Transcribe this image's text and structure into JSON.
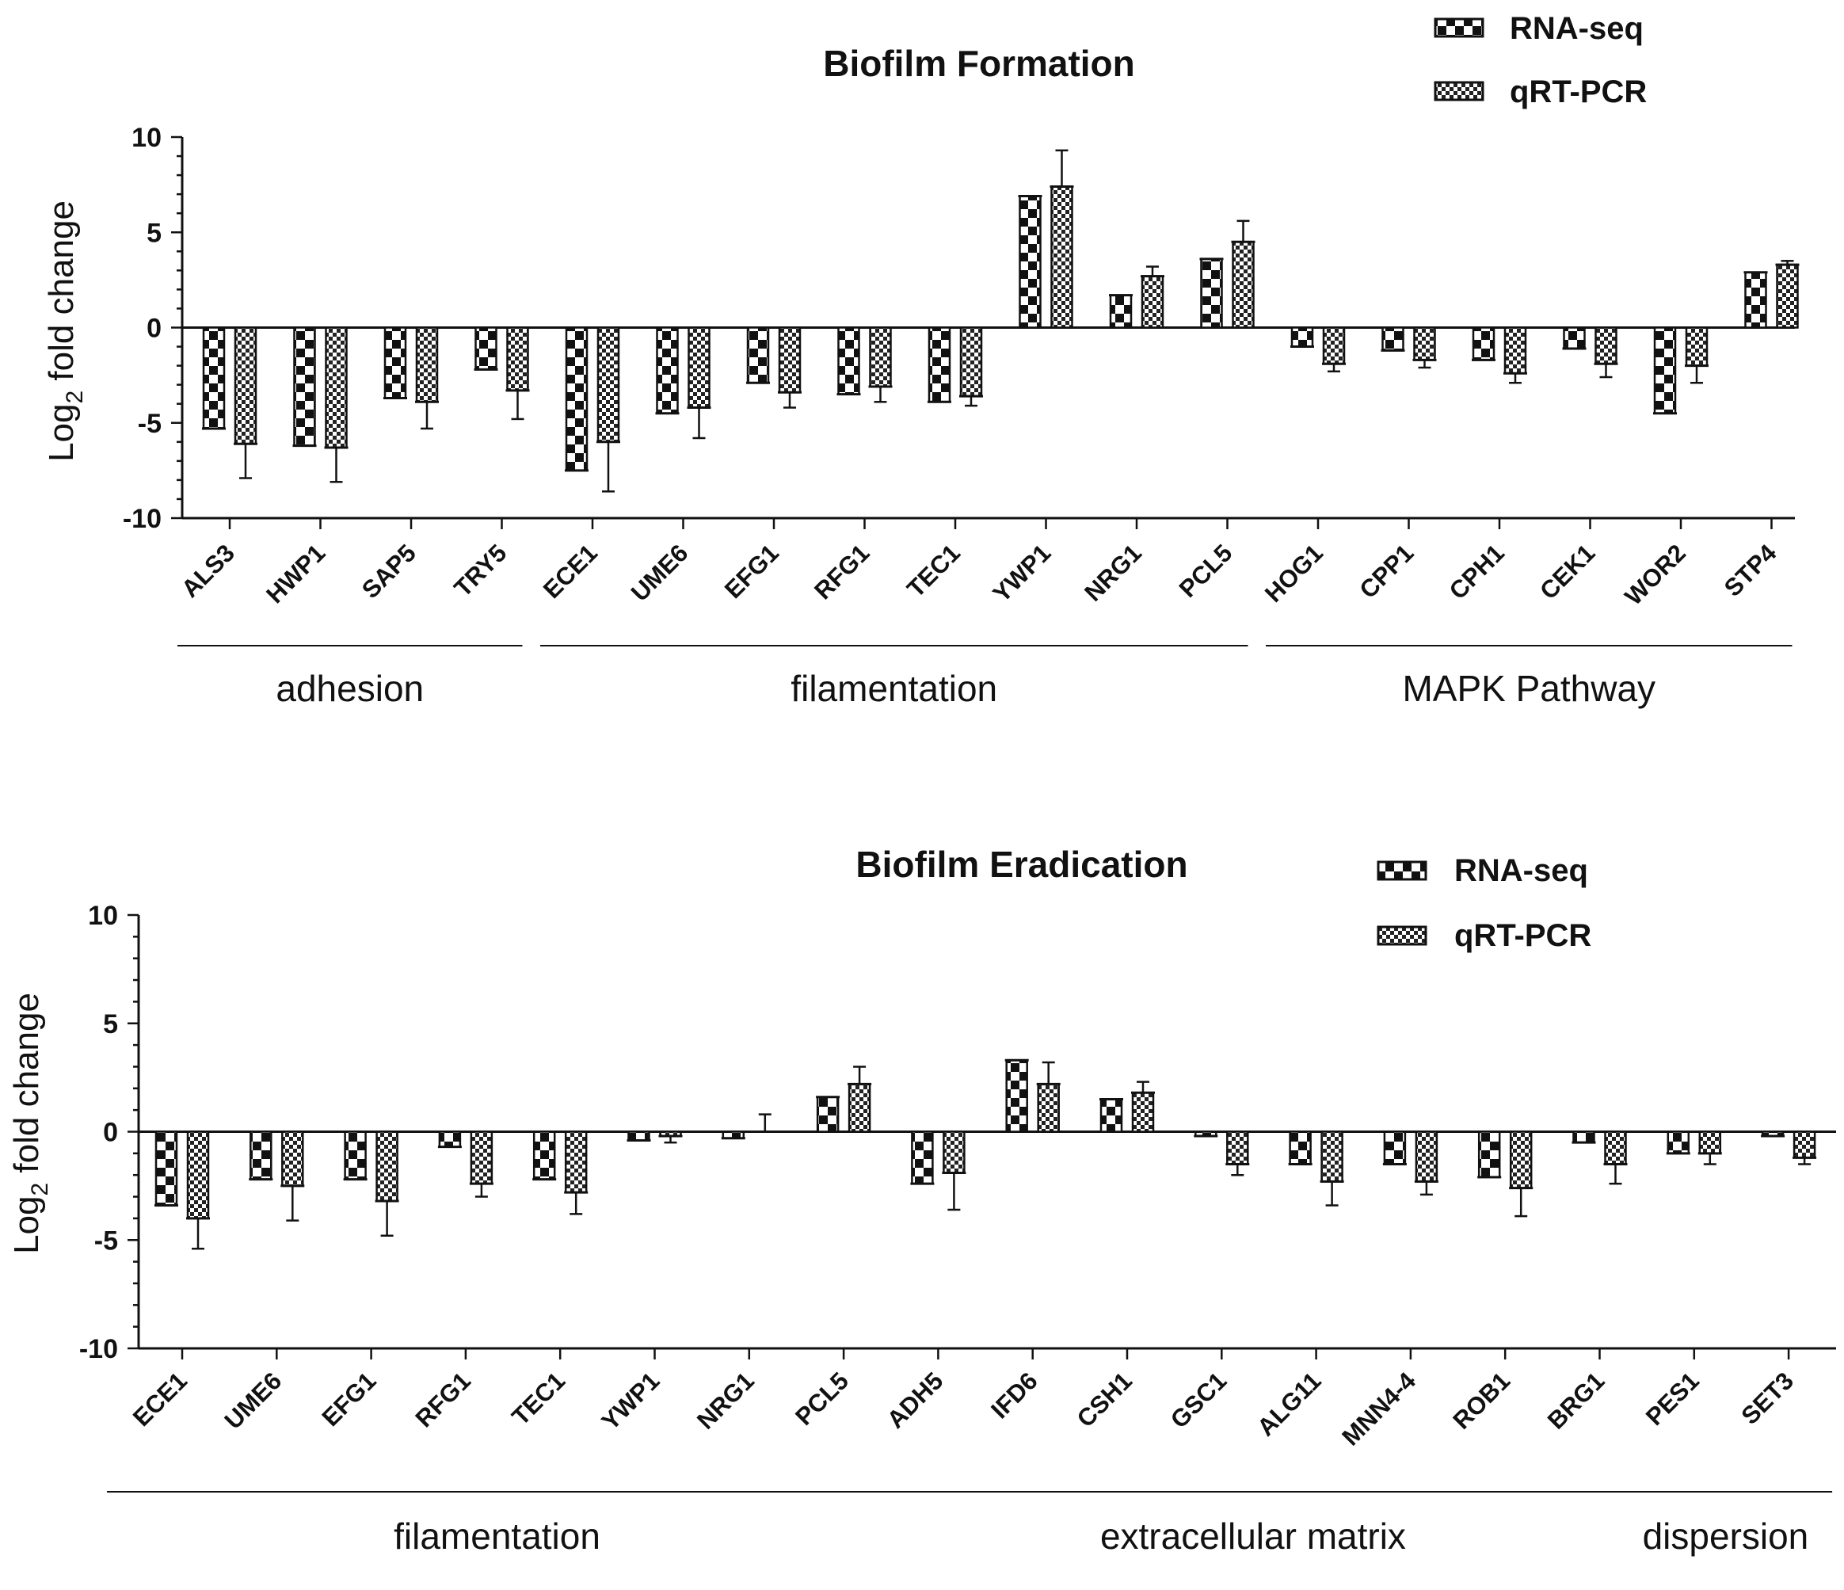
{
  "chart_data": [
    {
      "type": "bar",
      "title": "Biofilm Formation",
      "ylabel": "Log",
      "ylabel_sub": "2",
      "ylabel_rest": " fold change",
      "ylim": [
        -10,
        10
      ],
      "yticks": [
        10,
        5,
        0,
        -5,
        -10
      ],
      "ytick_labels": [
        "10",
        "5",
        "0",
        "-5",
        "-10"
      ],
      "legend": [
        "RNA-seq",
        "qRT-PCR"
      ],
      "legend_position": "top-right",
      "categories": [
        "ALS3",
        "HWP1",
        "SAP5",
        "TRY5",
        "ECE1",
        "UME6",
        "EFG1",
        "RFG1",
        "TEC1",
        "YWP1",
        "NRG1",
        "PCL5",
        "HOG1",
        "CPP1",
        "CPH1",
        "CEK1",
        "WOR2",
        "STP4"
      ],
      "series": [
        {
          "name": "RNA-seq",
          "values": [
            -5.3,
            -6.2,
            -3.7,
            -2.2,
            -7.5,
            -4.5,
            -2.9,
            -3.5,
            -3.9,
            6.9,
            1.7,
            3.6,
            -1.0,
            -1.2,
            -1.7,
            -1.1,
            -4.5,
            2.9
          ],
          "errors": [
            0,
            0,
            0,
            0,
            0,
            0,
            0,
            0,
            0,
            0,
            0,
            0,
            0,
            0,
            0,
            0,
            0,
            0
          ]
        },
        {
          "name": "qRT-PCR",
          "values": [
            -6.1,
            -6.3,
            -3.9,
            -3.3,
            -6.0,
            -4.2,
            -3.4,
            -3.1,
            -3.6,
            7.4,
            2.7,
            4.5,
            -1.9,
            -1.7,
            -2.4,
            -1.9,
            -2.0,
            3.3
          ],
          "errors": [
            1.8,
            1.8,
            1.4,
            1.5,
            2.6,
            1.6,
            0.8,
            0.8,
            0.5,
            1.9,
            0.5,
            1.1,
            0.4,
            0.4,
            0.5,
            0.7,
            0.9,
            0.2
          ]
        }
      ],
      "groups": [
        {
          "label": "adhesion",
          "from": 0,
          "to": 3
        },
        {
          "label": "filamentation",
          "from": 4,
          "to": 11
        },
        {
          "label": "MAPK Pathway",
          "from": 12,
          "to": 17
        }
      ]
    },
    {
      "type": "bar",
      "title": "Biofilm Eradication",
      "ylabel": "Log",
      "ylabel_sub": "2",
      "ylabel_rest": " fold change",
      "ylim": [
        -10,
        10
      ],
      "yticks": [
        10,
        5,
        0,
        -5,
        -10
      ],
      "ytick_labels": [
        "10",
        "5",
        "0",
        "-5",
        "-10"
      ],
      "legend": [
        "RNA-seq",
        "qRT-PCR"
      ],
      "legend_position": "top-right",
      "categories": [
        "ECE1",
        "UME6",
        "EFG1",
        "RFG1",
        "TEC1",
        "YWP1",
        "NRG1",
        "PCL5",
        "ADH5",
        "IFD6",
        "CSH1",
        "GSC1",
        "ALG11",
        "MNN4-4",
        "ROB1",
        "BRG1",
        "PES1",
        "SET3"
      ],
      "series": [
        {
          "name": "RNA-seq",
          "values": [
            -3.4,
            -2.2,
            -2.2,
            -0.7,
            -2.2,
            -0.4,
            -0.3,
            1.6,
            -2.4,
            3.3,
            1.5,
            -0.2,
            -1.5,
            -1.5,
            -2.1,
            -0.5,
            -1.0,
            -0.2
          ],
          "errors": [
            0,
            0,
            0,
            0,
            0,
            0,
            0,
            0,
            0,
            0,
            0,
            0,
            0,
            0,
            0,
            0,
            0,
            0
          ]
        },
        {
          "name": "qRT-PCR",
          "values": [
            -4.0,
            -2.5,
            -3.2,
            -2.4,
            -2.8,
            -0.2,
            0.0,
            2.2,
            -1.9,
            2.2,
            1.8,
            -1.5,
            -2.3,
            -2.3,
            -2.6,
            -1.5,
            -1.0,
            -1.2
          ],
          "errors": [
            1.4,
            1.6,
            1.6,
            0.6,
            1.0,
            0.3,
            0.8,
            0.8,
            1.7,
            1.0,
            0.5,
            0.5,
            1.1,
            0.6,
            1.3,
            0.9,
            0.5,
            0.3
          ]
        }
      ],
      "groups": [
        {
          "label": "filamentation",
          "from": 0,
          "to": 7
        },
        {
          "label": "extracellular matrix",
          "from": 8,
          "to": 15
        },
        {
          "label": "dispersion",
          "from": 16,
          "to": 17
        }
      ]
    }
  ],
  "colors": {
    "ink": "#111111",
    "background": "#ffffff"
  }
}
